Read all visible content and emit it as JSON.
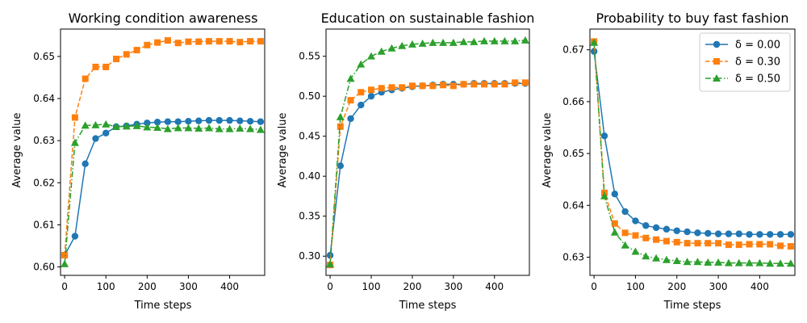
{
  "chart_data": [
    {
      "type": "line",
      "title": "Working condition awareness",
      "xlabel": "Time steps",
      "ylabel": "Average value",
      "xlim": [
        -10,
        485
      ],
      "ylim": [
        0.598,
        0.6565
      ],
      "xticks": [
        0,
        100,
        200,
        300,
        400
      ],
      "xtick_labels": [
        "0",
        "100",
        "200",
        "300",
        "400"
      ],
      "yticks": [
        0.6,
        0.61,
        0.62,
        0.63,
        0.64,
        0.65
      ],
      "ytick_labels": [
        "0.60",
        "0.61",
        "0.62",
        "0.63",
        "0.64",
        "0.65"
      ],
      "x": [
        0,
        25,
        50,
        75,
        100,
        125,
        150,
        175,
        200,
        225,
        250,
        275,
        300,
        325,
        350,
        375,
        400,
        425,
        450,
        475
      ],
      "series": [
        {
          "name": "δ = 0.00",
          "values": [
            0.6028,
            0.6073,
            0.6245,
            0.6305,
            0.6318,
            0.6333,
            0.6335,
            0.6339,
            0.6342,
            0.6344,
            0.6345,
            0.6345,
            0.6346,
            0.6347,
            0.6348,
            0.6348,
            0.6348,
            0.6347,
            0.6346,
            0.6345
          ]
        },
        {
          "name": "δ = 0.30",
          "values": [
            0.6028,
            0.6355,
            0.6447,
            0.6475,
            0.6475,
            0.6494,
            0.6505,
            0.6515,
            0.6527,
            0.6533,
            0.6538,
            0.6532,
            0.6535,
            0.6535,
            0.6536,
            0.6536,
            0.6536,
            0.6534,
            0.6536,
            0.6536
          ]
        },
        {
          "name": "δ = 0.50",
          "values": [
            0.6007,
            0.6295,
            0.6336,
            0.6337,
            0.6339,
            0.6333,
            0.6334,
            0.6335,
            0.6332,
            0.6331,
            0.6328,
            0.633,
            0.633,
            0.6329,
            0.633,
            0.6328,
            0.6328,
            0.6329,
            0.6328,
            0.6326
          ]
        }
      ]
    },
    {
      "type": "line",
      "title": "Education on sustainable fashion",
      "xlabel": "Time steps",
      "ylabel": "Average value",
      "xlim": [
        -10,
        485
      ],
      "ylim": [
        0.276,
        0.584
      ],
      "xticks": [
        0,
        100,
        200,
        300,
        400
      ],
      "xtick_labels": [
        "0",
        "100",
        "200",
        "300",
        "400"
      ],
      "yticks": [
        0.3,
        0.35,
        0.4,
        0.45,
        0.5,
        0.55
      ],
      "ytick_labels": [
        "0.30",
        "0.35",
        "0.40",
        "0.45",
        "0.50",
        "0.55"
      ],
      "x": [
        0,
        25,
        50,
        75,
        100,
        125,
        150,
        175,
        200,
        225,
        250,
        275,
        300,
        325,
        350,
        375,
        400,
        425,
        450,
        475
      ],
      "series": [
        {
          "name": "δ = 0.00",
          "values": [
            0.301,
            0.413,
            0.472,
            0.489,
            0.5,
            0.505,
            0.508,
            0.51,
            0.512,
            0.513,
            0.514,
            0.515,
            0.515,
            0.515,
            0.516,
            0.516,
            0.516,
            0.516,
            0.516,
            0.516
          ]
        },
        {
          "name": "δ = 0.30",
          "values": [
            0.289,
            0.462,
            0.495,
            0.505,
            0.508,
            0.51,
            0.511,
            0.511,
            0.513,
            0.513,
            0.513,
            0.514,
            0.513,
            0.515,
            0.515,
            0.515,
            0.515,
            0.515,
            0.517,
            0.517
          ]
        },
        {
          "name": "δ = 0.50",
          "values": [
            0.29,
            0.474,
            0.522,
            0.54,
            0.55,
            0.556,
            0.56,
            0.563,
            0.565,
            0.566,
            0.567,
            0.567,
            0.567,
            0.568,
            0.568,
            0.569,
            0.569,
            0.569,
            0.569,
            0.57
          ]
        }
      ]
    },
    {
      "type": "line",
      "title": "Probability to buy fast fashion",
      "xlabel": "Time steps",
      "ylabel": "Average value",
      "xlim": [
        -10,
        485
      ],
      "ylim": [
        0.6265,
        0.674
      ],
      "xticks": [
        0,
        100,
        200,
        300,
        400
      ],
      "xtick_labels": [
        "0",
        "100",
        "200",
        "300",
        "400"
      ],
      "yticks": [
        0.63,
        0.64,
        0.65,
        0.66,
        0.67
      ],
      "ytick_labels": [
        "0.63",
        "0.64",
        "0.65",
        "0.66",
        "0.67"
      ],
      "legend": "top-right",
      "x": [
        0,
        25,
        50,
        75,
        100,
        125,
        150,
        175,
        200,
        225,
        250,
        275,
        300,
        325,
        350,
        375,
        400,
        425,
        450,
        475
      ],
      "series": [
        {
          "name": "δ = 0.00",
          "values": [
            0.6697,
            0.6534,
            0.6422,
            0.6388,
            0.637,
            0.6361,
            0.6357,
            0.6354,
            0.6351,
            0.6349,
            0.6347,
            0.6346,
            0.6345,
            0.6345,
            0.6345,
            0.6344,
            0.6344,
            0.6344,
            0.6344,
            0.6344
          ]
        },
        {
          "name": "δ = 0.30",
          "values": [
            0.6716,
            0.6424,
            0.6365,
            0.6347,
            0.6342,
            0.6337,
            0.6334,
            0.6331,
            0.6329,
            0.6327,
            0.6327,
            0.6327,
            0.6327,
            0.6324,
            0.6324,
            0.6325,
            0.6325,
            0.6325,
            0.6322,
            0.6321
          ]
        },
        {
          "name": "δ = 0.50",
          "values": [
            0.6714,
            0.6418,
            0.6348,
            0.6323,
            0.6311,
            0.6302,
            0.6298,
            0.6295,
            0.6293,
            0.6291,
            0.6291,
            0.629,
            0.629,
            0.6289,
            0.6289,
            0.6289,
            0.6289,
            0.6288,
            0.6288,
            0.6288
          ]
        }
      ]
    }
  ],
  "style": {
    "series_colors": [
      "#1f77b4",
      "#ff7f0e",
      "#2ca02c"
    ],
    "series_markers": [
      "circle",
      "square",
      "triangle"
    ],
    "series_dashes": [
      "solid",
      "dashed",
      "dashdot"
    ]
  }
}
